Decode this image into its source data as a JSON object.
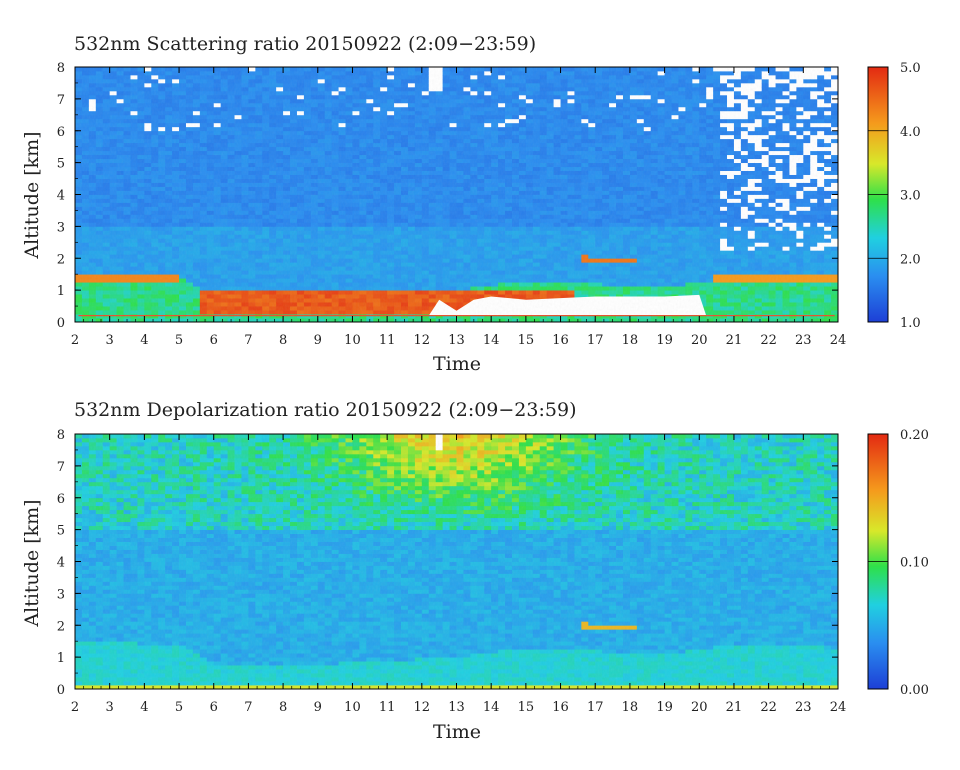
{
  "chart_data": [
    {
      "type": "heatmap",
      "title": "532nm Scattering ratio  20150922 (2:09−23:59)",
      "xlabel": "Time",
      "ylabel": "Altitude [km]",
      "xlim": [
        2,
        24
      ],
      "ylim": [
        0,
        8
      ],
      "x_ticks": [
        "2",
        "3",
        "4",
        "5",
        "6",
        "7",
        "8",
        "9",
        "10",
        "11",
        "12",
        "13",
        "14",
        "15",
        "16",
        "17",
        "18",
        "19",
        "20",
        "21",
        "22",
        "23",
        "24"
      ],
      "y_ticks": [
        "0",
        "1",
        "2",
        "3",
        "4",
        "5",
        "6",
        "7",
        "8"
      ],
      "colorbar": {
        "min": 1.0,
        "max": 5.0,
        "ticks": [
          "1.0",
          "2.0",
          "3.0",
          "4.0",
          "5.0"
        ]
      },
      "features": [
        {
          "name": "boundary layer top",
          "x": [
            2,
            5,
            8,
            11,
            13,
            15,
            17,
            19,
            21,
            24
          ],
          "y": [
            1.5,
            1.4,
            0.7,
            0.9,
            1.0,
            1.3,
            1.2,
            1.1,
            1.4,
            1.3
          ],
          "value": 4.0
        },
        {
          "name": "elevated layer",
          "x": [
            16.7,
            18.3
          ],
          "y": [
            2.0,
            1.9
          ],
          "value": 3.8
        }
      ]
    },
    {
      "type": "heatmap",
      "title": "532nm Depolarization ratio  20150922 (2:09−23:59)",
      "xlabel": "Time",
      "ylabel": "Altitude [km]",
      "xlim": [
        2,
        24
      ],
      "ylim": [
        0,
        8
      ],
      "x_ticks": [
        "2",
        "3",
        "4",
        "5",
        "6",
        "7",
        "8",
        "9",
        "10",
        "11",
        "12",
        "13",
        "14",
        "15",
        "16",
        "17",
        "18",
        "19",
        "20",
        "21",
        "22",
        "23",
        "24"
      ],
      "y_ticks": [
        "0",
        "1",
        "2",
        "3",
        "4",
        "5",
        "6",
        "7",
        "8"
      ],
      "colorbar": {
        "min": 0.0,
        "max": 0.2,
        "ticks": [
          "0.00",
          "0.10",
          "0.20"
        ]
      },
      "features": [
        {
          "name": "upper high depol region",
          "x": [
            9,
            17
          ],
          "y": [
            5.0,
            8.0
          ],
          "value": 0.14
        },
        {
          "name": "elevated layer",
          "x": [
            16.7,
            18.3
          ],
          "y": [
            2.0,
            1.9
          ],
          "value": 0.17
        }
      ]
    }
  ]
}
